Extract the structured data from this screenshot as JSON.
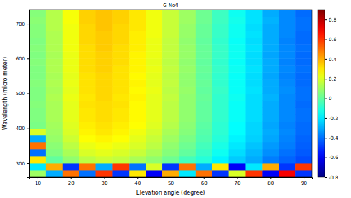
{
  "chart_data": {
    "type": "heatmap",
    "title": "G No4",
    "x_label": "Elevation angle (degree)",
    "y_label": "Wavelength (micro meter)",
    "x": [
      10,
      15,
      20,
      25,
      30,
      35,
      40,
      45,
      50,
      55,
      60,
      65,
      70,
      75,
      80,
      85,
      90
    ],
    "y": [
      270,
      290,
      310,
      330,
      350,
      370,
      390,
      410,
      430,
      450,
      470,
      490,
      510,
      530,
      550,
      570,
      590,
      610,
      630,
      650,
      670,
      690,
      710,
      730
    ],
    "xlim": [
      7.5,
      92.5
    ],
    "xticks": [
      10,
      20,
      30,
      40,
      50,
      60,
      70,
      80,
      90
    ],
    "ylim": [
      260,
      740
    ],
    "yticks": [
      300,
      400,
      500,
      600,
      700
    ],
    "z": [
      [
        0.1,
        -0.3,
        0.5,
        -0.4,
        0.6,
        -0.5,
        0.3,
        -0.6,
        0.4,
        -0.2,
        0.5,
        -0.5,
        0.2,
        0.6,
        -0.6,
        0.7,
        -0.5
      ],
      [
        -0.2,
        0.4,
        -0.5,
        0.5,
        -0.3,
        0.6,
        -0.4,
        0.2,
        -0.5,
        0.5,
        -0.3,
        0.3,
        -0.6,
        -0.2,
        0.4,
        -0.5,
        0.6
      ],
      [
        0.3,
        0.0,
        0.08,
        0.15,
        0.18,
        0.16,
        0.12,
        0.08,
        0.02,
        -0.05,
        -0.1,
        -0.18,
        -0.25,
        -0.3,
        -0.38,
        -0.42,
        -0.46
      ],
      [
        -0.4,
        0.05,
        0.12,
        0.2,
        0.22,
        0.2,
        0.17,
        0.12,
        0.06,
        0.0,
        -0.07,
        -0.14,
        -0.22,
        -0.28,
        -0.35,
        -0.4,
        -0.44
      ],
      [
        0.5,
        0.07,
        0.15,
        0.23,
        0.25,
        0.23,
        0.2,
        0.15,
        0.08,
        0.02,
        -0.05,
        -0.12,
        -0.2,
        -0.26,
        -0.33,
        -0.38,
        -0.43
      ],
      [
        -0.3,
        0.09,
        0.18,
        0.26,
        0.28,
        0.26,
        0.22,
        0.17,
        0.1,
        0.04,
        -0.03,
        -0.1,
        -0.18,
        -0.24,
        -0.31,
        -0.37,
        -0.42
      ],
      [
        0.2,
        0.1,
        0.2,
        0.28,
        0.3,
        0.28,
        0.24,
        0.19,
        0.12,
        0.06,
        -0.02,
        -0.09,
        -0.16,
        -0.23,
        -0.3,
        -0.36,
        -0.41
      ],
      [
        0.04,
        0.11,
        0.21,
        0.29,
        0.31,
        0.29,
        0.26,
        0.21,
        0.14,
        0.07,
        -0.01,
        -0.09,
        -0.16,
        -0.23,
        -0.31,
        -0.37,
        -0.41
      ],
      [
        0.05,
        0.12,
        0.22,
        0.3,
        0.32,
        0.3,
        0.27,
        0.22,
        0.15,
        0.08,
        0.0,
        -0.08,
        -0.15,
        -0.22,
        -0.3,
        -0.36,
        -0.4
      ],
      [
        0.05,
        0.12,
        0.22,
        0.3,
        0.32,
        0.3,
        0.27,
        0.22,
        0.15,
        0.08,
        0.0,
        -0.08,
        -0.15,
        -0.22,
        -0.3,
        -0.36,
        -0.4
      ],
      [
        0.06,
        0.12,
        0.22,
        0.31,
        0.32,
        0.31,
        0.27,
        0.22,
        0.15,
        0.08,
        0.0,
        -0.08,
        -0.15,
        -0.22,
        -0.3,
        -0.36,
        -0.41
      ],
      [
        0.05,
        0.13,
        0.23,
        0.3,
        0.33,
        0.3,
        0.28,
        0.22,
        0.16,
        0.08,
        0.01,
        -0.08,
        -0.14,
        -0.22,
        -0.29,
        -0.36,
        -0.4
      ],
      [
        0.05,
        0.12,
        0.22,
        0.31,
        0.33,
        0.31,
        0.27,
        0.23,
        0.15,
        0.09,
        0.0,
        -0.07,
        -0.15,
        -0.21,
        -0.3,
        -0.35,
        -0.4
      ],
      [
        0.06,
        0.13,
        0.23,
        0.31,
        0.33,
        0.31,
        0.28,
        0.22,
        0.16,
        0.08,
        0.01,
        -0.08,
        -0.15,
        -0.22,
        -0.3,
        -0.36,
        -0.41
      ],
      [
        0.05,
        0.12,
        0.22,
        0.31,
        0.33,
        0.31,
        0.27,
        0.22,
        0.15,
        0.08,
        0.0,
        -0.08,
        -0.15,
        -0.22,
        -0.31,
        -0.37,
        -0.41
      ],
      [
        0.05,
        0.13,
        0.23,
        0.32,
        0.34,
        0.31,
        0.28,
        0.23,
        0.16,
        0.09,
        0.01,
        -0.07,
        -0.14,
        -0.21,
        -0.3,
        -0.36,
        -0.4
      ],
      [
        0.06,
        0.13,
        0.23,
        0.32,
        0.34,
        0.32,
        0.28,
        0.22,
        0.15,
        0.08,
        0.0,
        -0.08,
        -0.15,
        -0.22,
        -0.3,
        -0.37,
        -0.41
      ],
      [
        0.05,
        0.12,
        0.23,
        0.32,
        0.34,
        0.32,
        0.28,
        0.23,
        0.16,
        0.09,
        0.01,
        -0.07,
        -0.14,
        -0.22,
        -0.31,
        -0.36,
        -0.41
      ],
      [
        0.06,
        0.13,
        0.24,
        0.32,
        0.35,
        0.32,
        0.29,
        0.23,
        0.16,
        0.09,
        0.01,
        -0.07,
        -0.14,
        -0.21,
        -0.3,
        -0.36,
        -0.4
      ],
      [
        0.05,
        0.13,
        0.24,
        0.33,
        0.35,
        0.33,
        0.29,
        0.23,
        0.16,
        0.08,
        0.0,
        -0.08,
        -0.15,
        -0.22,
        -0.3,
        -0.37,
        -0.41
      ],
      [
        0.06,
        0.13,
        0.24,
        0.33,
        0.35,
        0.33,
        0.29,
        0.24,
        0.17,
        0.09,
        0.01,
        -0.07,
        -0.14,
        -0.21,
        -0.3,
        -0.36,
        -0.41
      ],
      [
        0.06,
        0.14,
        0.24,
        0.33,
        0.36,
        0.33,
        0.3,
        0.24,
        0.17,
        0.09,
        0.01,
        -0.07,
        -0.14,
        -0.22,
        -0.3,
        -0.36,
        -0.4
      ],
      [
        0.07,
        0.14,
        0.25,
        0.34,
        0.36,
        0.34,
        0.3,
        0.24,
        0.17,
        0.1,
        0.02,
        -0.06,
        -0.13,
        -0.21,
        -0.29,
        -0.36,
        -0.4
      ],
      [
        0.06,
        0.14,
        0.25,
        0.34,
        0.36,
        0.34,
        0.3,
        0.24,
        0.17,
        0.1,
        0.02,
        -0.06,
        -0.14,
        -0.21,
        -0.3,
        -0.36,
        -0.41
      ]
    ],
    "colorbar_lim": [
      -0.8,
      0.9
    ],
    "colorbar_ticks": [
      -0.8,
      -0.6,
      -0.4,
      -0.2,
      0,
      0.2,
      0.4,
      0.6,
      0.8
    ]
  }
}
